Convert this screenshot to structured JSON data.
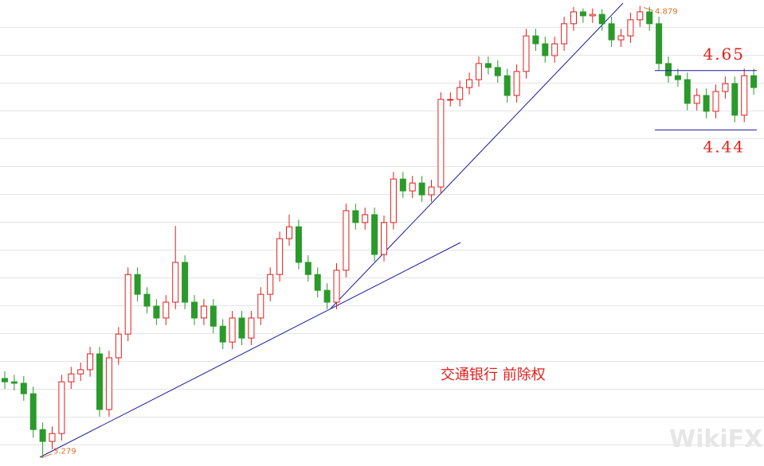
{
  "chart_data": {
    "type": "candlestick",
    "title": "交通银行 前除权",
    "watermark": "WikiFX",
    "ylim": [
      3.25,
      4.9
    ],
    "open": [
      3.56,
      3.548,
      3.543,
      3.506,
      3.379,
      3.337,
      3.365,
      3.548,
      3.576,
      3.591,
      3.647,
      3.45,
      3.633,
      3.717,
      3.928,
      3.858,
      3.816,
      3.774,
      3.83,
      3.971,
      3.83,
      3.774,
      3.816,
      3.745,
      3.689,
      3.774,
      3.703,
      3.774,
      3.858,
      3.928,
      4.055,
      4.097,
      3.971,
      3.928,
      3.872,
      3.83,
      3.943,
      4.154,
      4.112,
      4.14,
      3.999,
      4.112,
      4.266,
      4.224,
      4.252,
      4.21,
      4.238,
      4.548,
      4.548,
      4.59,
      4.618,
      4.675,
      4.661,
      4.632,
      4.562,
      4.647,
      4.773,
      4.745,
      4.703,
      4.745,
      4.816,
      4.858,
      4.844,
      4.849,
      4.816,
      4.759,
      4.773,
      4.83,
      4.858,
      4.816,
      4.675,
      4.632,
      4.618,
      4.534,
      4.562,
      4.506,
      4.576,
      4.604,
      4.492,
      4.632
    ],
    "high": [
      3.585,
      3.573,
      3.568,
      3.531,
      3.404,
      3.39,
      3.573,
      3.601,
      3.616,
      3.672,
      3.672,
      3.658,
      3.742,
      3.953,
      3.953,
      3.883,
      3.841,
      3.855,
      4.1,
      3.996,
      3.855,
      3.841,
      3.841,
      3.77,
      3.799,
      3.799,
      3.799,
      3.883,
      3.953,
      4.08,
      4.14,
      4.122,
      3.996,
      3.953,
      3.897,
      3.968,
      4.179,
      4.179,
      4.165,
      4.165,
      4.137,
      4.291,
      4.291,
      4.277,
      4.277,
      4.263,
      4.573,
      4.573,
      4.615,
      4.643,
      4.7,
      4.7,
      4.686,
      4.657,
      4.672,
      4.798,
      4.798,
      4.77,
      4.77,
      4.841,
      4.875,
      4.87,
      4.87,
      4.868,
      4.841,
      4.798,
      4.855,
      4.879,
      4.876,
      4.841,
      4.7,
      4.657,
      4.643,
      4.587,
      4.587,
      4.601,
      4.629,
      4.629,
      4.657,
      4.657
    ],
    "low": [
      3.523,
      3.518,
      3.481,
      3.35,
      3.279,
      3.31,
      3.34,
      3.523,
      3.551,
      3.566,
      3.425,
      3.425,
      3.608,
      3.692,
      3.833,
      3.791,
      3.749,
      3.749,
      3.805,
      3.805,
      3.749,
      3.749,
      3.72,
      3.664,
      3.664,
      3.678,
      3.678,
      3.749,
      3.833,
      3.903,
      4.03,
      3.946,
      3.903,
      3.847,
      3.805,
      3.805,
      3.918,
      4.087,
      4.087,
      3.974,
      3.974,
      4.087,
      4.199,
      4.199,
      4.185,
      4.185,
      4.213,
      4.523,
      4.523,
      4.565,
      4.593,
      4.636,
      4.607,
      4.537,
      4.537,
      4.622,
      4.72,
      4.678,
      4.678,
      4.72,
      4.791,
      4.819,
      4.819,
      4.791,
      4.734,
      4.734,
      4.748,
      4.805,
      4.791,
      4.65,
      4.607,
      4.593,
      4.509,
      4.509,
      4.481,
      4.481,
      4.551,
      4.467,
      4.467,
      4.565
    ],
    "close": [
      3.548,
      3.543,
      3.506,
      3.379,
      3.337,
      3.365,
      3.548,
      3.576,
      3.591,
      3.647,
      3.45,
      3.633,
      3.717,
      3.928,
      3.858,
      3.816,
      3.774,
      3.83,
      3.971,
      3.83,
      3.774,
      3.816,
      3.745,
      3.689,
      3.774,
      3.703,
      3.774,
      3.858,
      3.928,
      4.055,
      4.097,
      3.971,
      3.928,
      3.872,
      3.83,
      3.943,
      4.154,
      4.112,
      4.14,
      3.999,
      4.112,
      4.266,
      4.224,
      4.252,
      4.21,
      4.238,
      4.548,
      4.548,
      4.59,
      4.618,
      4.675,
      4.661,
      4.632,
      4.562,
      4.647,
      4.773,
      4.745,
      4.703,
      4.745,
      4.816,
      4.858,
      4.844,
      4.849,
      4.816,
      4.759,
      4.773,
      4.83,
      4.858,
      4.816,
      4.675,
      4.632,
      4.618,
      4.534,
      4.562,
      4.506,
      4.576,
      4.604,
      4.492,
      4.632,
      4.59
    ],
    "up_color": "#e0201c",
    "down_color": "#2a9a2a",
    "levels": [
      4.65,
      4.44
    ],
    "level_color": "#1a1aa0",
    "min_label": 3.279,
    "max_label": 4.879
  }
}
